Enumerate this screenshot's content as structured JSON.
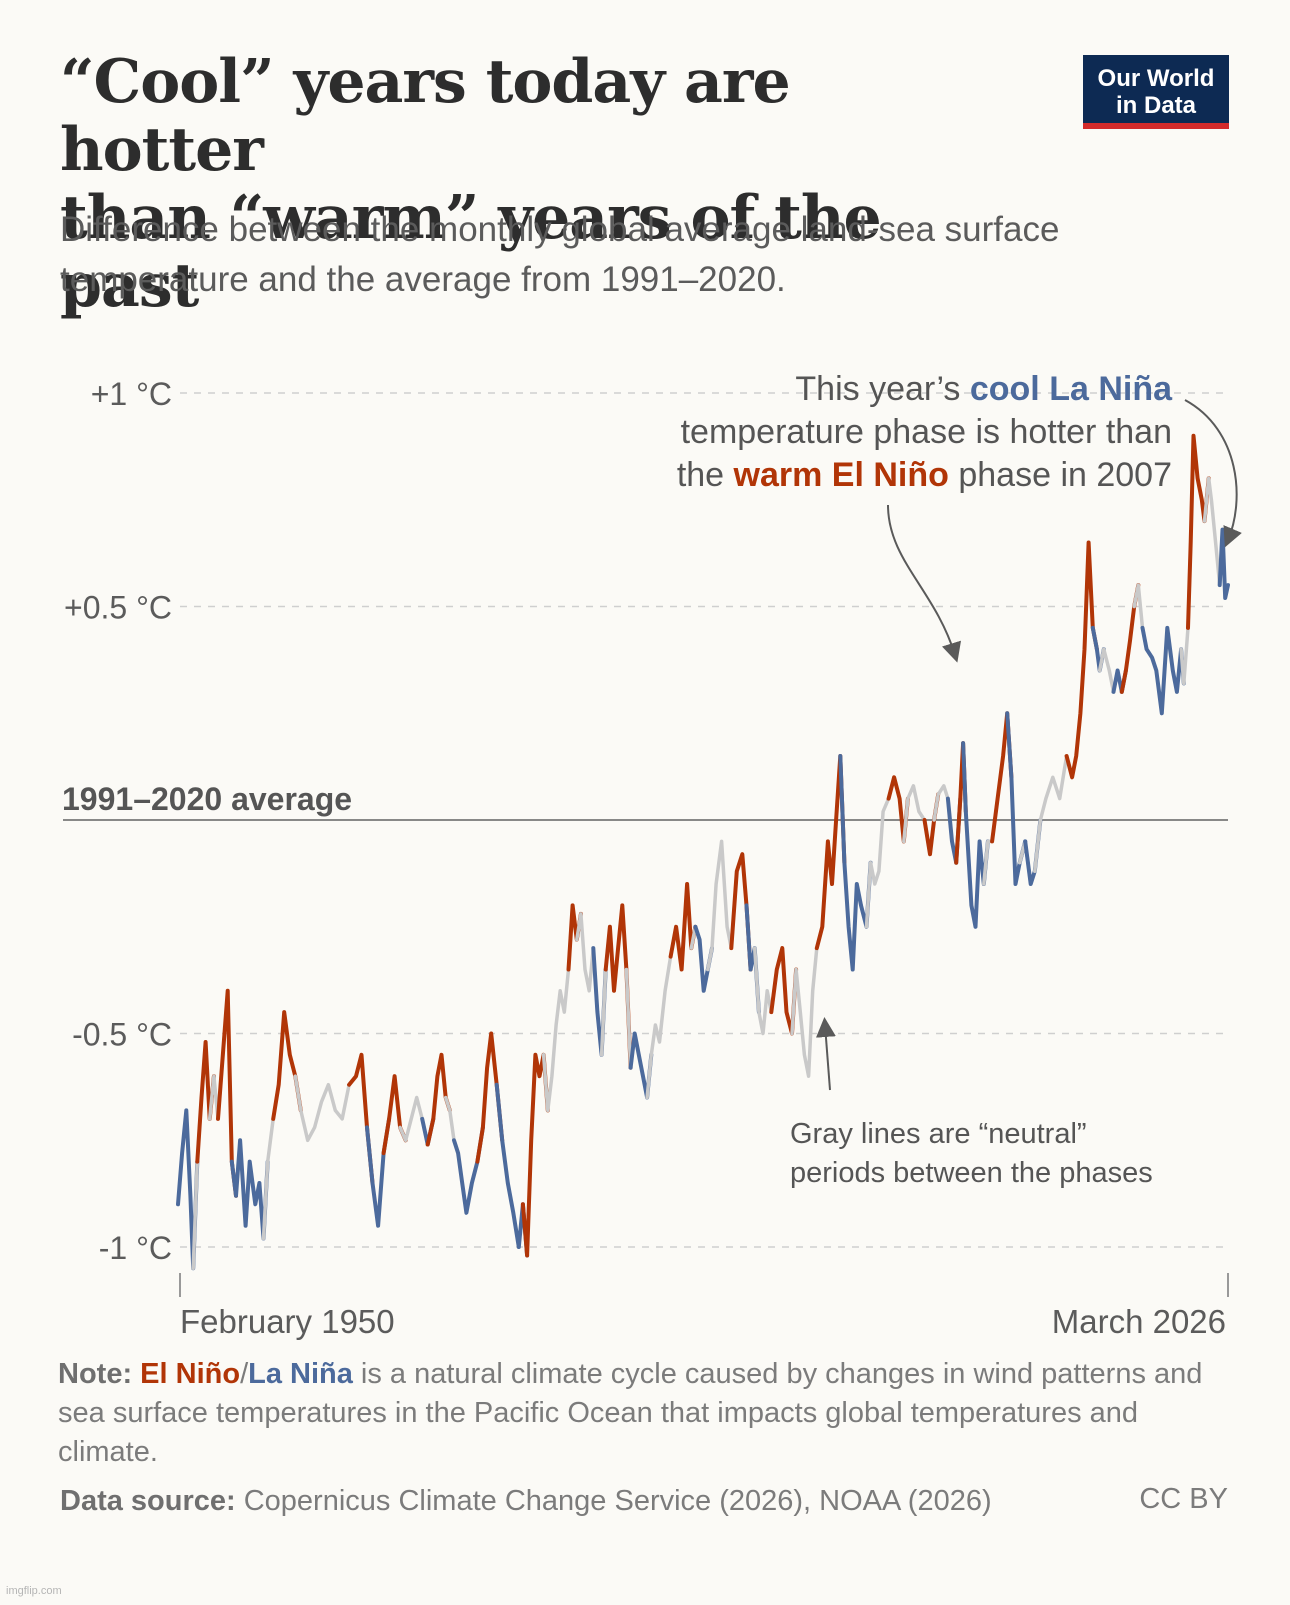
{
  "header": {
    "title_line1": "“Cool” years today are hotter",
    "title_line2": "than “warm” years of the past",
    "subtitle": "Difference between the monthly global average land-sea surface temperature and the average from 1991–2020.",
    "logo_line1": "Our World",
    "logo_line2": "in Data"
  },
  "chart_data": {
    "type": "line",
    "title": "“Cool” years today are hotter than “warm” years of the past",
    "ylabel": "",
    "xlabel": "",
    "ylim": [
      -1.08,
      1.05
    ],
    "x_range": [
      "February 1950",
      "March 2026"
    ],
    "y_ticks": [
      {
        "value": 1,
        "label": "+1 °C"
      },
      {
        "value": 0.5,
        "label": "+0.5 °C"
      },
      {
        "value": -0.5,
        "label": "-0.5 °C"
      },
      {
        "value": -1,
        "label": "-1 °C"
      }
    ],
    "baseline": {
      "value": 0,
      "label": "1991–2020 average"
    },
    "x_tick_labels": [
      "February 1950",
      "March 2026"
    ],
    "series": [
      {
        "name": "El Niño",
        "color": "#b13507"
      },
      {
        "name": "La Niña",
        "color": "#4c6a9c"
      },
      {
        "name": "neutral",
        "color": "#c9c9c9"
      }
    ],
    "points": [
      [
        1950.1,
        -0.9,
        "L"
      ],
      [
        1950.4,
        -0.78,
        "L"
      ],
      [
        1950.7,
        -0.68,
        "L"
      ],
      [
        1951.0,
        -0.88,
        "L"
      ],
      [
        1951.2,
        -1.05,
        "L"
      ],
      [
        1951.5,
        -0.8,
        "N"
      ],
      [
        1951.8,
        -0.65,
        "E"
      ],
      [
        1952.1,
        -0.52,
        "E"
      ],
      [
        1952.4,
        -0.7,
        "E"
      ],
      [
        1952.7,
        -0.6,
        "N"
      ],
      [
        1953.0,
        -0.7,
        "N"
      ],
      [
        1953.3,
        -0.57,
        "E"
      ],
      [
        1953.7,
        -0.4,
        "E"
      ],
      [
        1954.0,
        -0.8,
        "E"
      ],
      [
        1954.3,
        -0.88,
        "L"
      ],
      [
        1954.6,
        -0.75,
        "L"
      ],
      [
        1955.0,
        -0.95,
        "L"
      ],
      [
        1955.3,
        -0.8,
        "L"
      ],
      [
        1955.7,
        -0.9,
        "L"
      ],
      [
        1956.0,
        -0.85,
        "L"
      ],
      [
        1956.3,
        -0.98,
        "L"
      ],
      [
        1956.6,
        -0.8,
        "N"
      ],
      [
        1957.0,
        -0.7,
        "N"
      ],
      [
        1957.4,
        -0.62,
        "E"
      ],
      [
        1957.8,
        -0.45,
        "E"
      ],
      [
        1958.2,
        -0.55,
        "E"
      ],
      [
        1958.6,
        -0.6,
        "E"
      ],
      [
        1959.0,
        -0.68,
        "N"
      ],
      [
        1959.5,
        -0.75,
        "N"
      ],
      [
        1960.0,
        -0.72,
        "N"
      ],
      [
        1960.5,
        -0.66,
        "N"
      ],
      [
        1961.0,
        -0.62,
        "N"
      ],
      [
        1961.5,
        -0.68,
        "N"
      ],
      [
        1962.0,
        -0.7,
        "N"
      ],
      [
        1962.5,
        -0.62,
        "N"
      ],
      [
        1963.0,
        -0.6,
        "E"
      ],
      [
        1963.4,
        -0.55,
        "E"
      ],
      [
        1963.8,
        -0.72,
        "E"
      ],
      [
        1964.2,
        -0.85,
        "L"
      ],
      [
        1964.6,
        -0.95,
        "L"
      ],
      [
        1965.0,
        -0.78,
        "L"
      ],
      [
        1965.4,
        -0.7,
        "E"
      ],
      [
        1965.8,
        -0.6,
        "E"
      ],
      [
        1966.2,
        -0.72,
        "E"
      ],
      [
        1966.6,
        -0.75,
        "N"
      ],
      [
        1967.0,
        -0.7,
        "N"
      ],
      [
        1967.4,
        -0.65,
        "N"
      ],
      [
        1967.8,
        -0.7,
        "N"
      ],
      [
        1968.2,
        -0.76,
        "L"
      ],
      [
        1968.6,
        -0.7,
        "E"
      ],
      [
        1968.9,
        -0.6,
        "E"
      ],
      [
        1969.2,
        -0.55,
        "E"
      ],
      [
        1969.5,
        -0.65,
        "E"
      ],
      [
        1969.8,
        -0.68,
        "N"
      ],
      [
        1970.1,
        -0.75,
        "N"
      ],
      [
        1970.4,
        -0.78,
        "L"
      ],
      [
        1970.7,
        -0.85,
        "L"
      ],
      [
        1971.0,
        -0.92,
        "L"
      ],
      [
        1971.4,
        -0.85,
        "L"
      ],
      [
        1971.8,
        -0.8,
        "L"
      ],
      [
        1972.2,
        -0.72,
        "E"
      ],
      [
        1972.5,
        -0.58,
        "E"
      ],
      [
        1972.8,
        -0.5,
        "E"
      ],
      [
        1973.2,
        -0.62,
        "E"
      ],
      [
        1973.6,
        -0.75,
        "L"
      ],
      [
        1974.0,
        -0.85,
        "L"
      ],
      [
        1974.4,
        -0.92,
        "L"
      ],
      [
        1974.8,
        -1.0,
        "L"
      ],
      [
        1975.1,
        -0.9,
        "L"
      ],
      [
        1975.4,
        -1.02,
        "E"
      ],
      [
        1975.7,
        -0.75,
        "E"
      ],
      [
        1976.0,
        -0.55,
        "E"
      ],
      [
        1976.3,
        -0.6,
        "E"
      ],
      [
        1976.6,
        -0.55,
        "E"
      ],
      [
        1976.9,
        -0.68,
        "N"
      ],
      [
        1977.2,
        -0.6,
        "N"
      ],
      [
        1977.5,
        -0.48,
        "N"
      ],
      [
        1977.8,
        -0.4,
        "N"
      ],
      [
        1978.1,
        -0.45,
        "N"
      ],
      [
        1978.4,
        -0.35,
        "N"
      ],
      [
        1978.7,
        -0.2,
        "E"
      ],
      [
        1979.0,
        -0.28,
        "E"
      ],
      [
        1979.3,
        -0.22,
        "N"
      ],
      [
        1979.6,
        -0.35,
        "N"
      ],
      [
        1979.9,
        -0.4,
        "N"
      ],
      [
        1980.2,
        -0.3,
        "N"
      ],
      [
        1980.5,
        -0.45,
        "L"
      ],
      [
        1980.8,
        -0.55,
        "L"
      ],
      [
        1981.1,
        -0.35,
        "N"
      ],
      [
        1981.4,
        -0.25,
        "E"
      ],
      [
        1981.7,
        -0.4,
        "E"
      ],
      [
        1982.0,
        -0.3,
        "E"
      ],
      [
        1982.3,
        -0.2,
        "E"
      ],
      [
        1982.6,
        -0.35,
        "E"
      ],
      [
        1982.9,
        -0.58,
        "N"
      ],
      [
        1983.2,
        -0.5,
        "L"
      ],
      [
        1983.5,
        -0.55,
        "L"
      ],
      [
        1983.8,
        -0.6,
        "L"
      ],
      [
        1984.1,
        -0.65,
        "L"
      ],
      [
        1984.4,
        -0.55,
        "N"
      ],
      [
        1984.7,
        -0.48,
        "N"
      ],
      [
        1985.0,
        -0.52,
        "N"
      ],
      [
        1985.4,
        -0.4,
        "N"
      ],
      [
        1985.8,
        -0.32,
        "N"
      ],
      [
        1986.2,
        -0.25,
        "E"
      ],
      [
        1986.6,
        -0.35,
        "E"
      ],
      [
        1987.0,
        -0.15,
        "E"
      ],
      [
        1987.3,
        -0.3,
        "E"
      ],
      [
        1987.6,
        -0.25,
        "N"
      ],
      [
        1987.9,
        -0.28,
        "L"
      ],
      [
        1988.2,
        -0.4,
        "L"
      ],
      [
        1988.5,
        -0.35,
        "L"
      ],
      [
        1988.8,
        -0.3,
        "N"
      ],
      [
        1989.1,
        -0.15,
        "N"
      ],
      [
        1989.5,
        -0.05,
        "N"
      ],
      [
        1989.9,
        -0.25,
        "N"
      ],
      [
        1990.2,
        -0.3,
        "N"
      ],
      [
        1990.6,
        -0.12,
        "E"
      ],
      [
        1991.0,
        -0.08,
        "E"
      ],
      [
        1991.3,
        -0.2,
        "E"
      ],
      [
        1991.6,
        -0.35,
        "L"
      ],
      [
        1991.9,
        -0.3,
        "L"
      ],
      [
        1992.2,
        -0.45,
        "N"
      ],
      [
        1992.5,
        -0.5,
        "N"
      ],
      [
        1992.8,
        -0.4,
        "N"
      ],
      [
        1993.1,
        -0.45,
        "N"
      ],
      [
        1993.5,
        -0.35,
        "E"
      ],
      [
        1993.9,
        -0.3,
        "E"
      ],
      [
        1994.2,
        -0.45,
        "E"
      ],
      [
        1994.6,
        -0.5,
        "E"
      ],
      [
        1994.9,
        -0.35,
        "N"
      ],
      [
        1995.2,
        -0.45,
        "N"
      ],
      [
        1995.5,
        -0.55,
        "N"
      ],
      [
        1995.8,
        -0.6,
        "N"
      ],
      [
        1996.1,
        -0.4,
        "N"
      ],
      [
        1996.4,
        -0.3,
        "N"
      ],
      [
        1996.8,
        -0.25,
        "E"
      ],
      [
        1997.2,
        -0.05,
        "E"
      ],
      [
        1997.5,
        -0.15,
        "E"
      ],
      [
        1997.8,
        0.0,
        "E"
      ],
      [
        1998.1,
        0.15,
        "E"
      ],
      [
        1998.4,
        -0.1,
        "L"
      ],
      [
        1998.7,
        -0.25,
        "L"
      ],
      [
        1999.0,
        -0.35,
        "L"
      ],
      [
        1999.3,
        -0.15,
        "L"
      ],
      [
        1999.6,
        -0.2,
        "L"
      ],
      [
        2000.0,
        -0.25,
        "L"
      ],
      [
        2000.3,
        -0.1,
        "N"
      ],
      [
        2000.6,
        -0.15,
        "N"
      ],
      [
        2000.9,
        -0.12,
        "N"
      ],
      [
        2001.2,
        0.02,
        "N"
      ],
      [
        2001.6,
        0.05,
        "N"
      ],
      [
        2002.0,
        0.1,
        "E"
      ],
      [
        2002.4,
        0.05,
        "E"
      ],
      [
        2002.7,
        -0.05,
        "E"
      ],
      [
        2003.0,
        0.05,
        "N"
      ],
      [
        2003.4,
        0.08,
        "N"
      ],
      [
        2003.8,
        0.02,
        "N"
      ],
      [
        2004.2,
        0.0,
        "N"
      ],
      [
        2004.6,
        -0.08,
        "E"
      ],
      [
        2004.9,
        0.0,
        "E"
      ],
      [
        2005.2,
        0.06,
        "N"
      ],
      [
        2005.6,
        0.08,
        "N"
      ],
      [
        2005.9,
        0.05,
        "N"
      ],
      [
        2006.2,
        -0.05,
        "L"
      ],
      [
        2006.5,
        -0.1,
        "L"
      ],
      [
        2006.8,
        0.05,
        "E"
      ],
      [
        2007.0,
        0.18,
        "E"
      ],
      [
        2007.2,
        0.02,
        "L"
      ],
      [
        2007.6,
        -0.2,
        "L"
      ],
      [
        2007.9,
        -0.25,
        "L"
      ],
      [
        2008.2,
        -0.05,
        "L"
      ],
      [
        2008.5,
        -0.15,
        "L"
      ],
      [
        2008.8,
        -0.05,
        "N"
      ],
      [
        2009.1,
        -0.05,
        "N"
      ],
      [
        2009.5,
        0.05,
        "E"
      ],
      [
        2009.9,
        0.15,
        "E"
      ],
      [
        2010.2,
        0.25,
        "E"
      ],
      [
        2010.5,
        0.1,
        "L"
      ],
      [
        2010.8,
        -0.15,
        "L"
      ],
      [
        2011.1,
        -0.1,
        "L"
      ],
      [
        2011.5,
        -0.05,
        "N"
      ],
      [
        2011.9,
        -0.15,
        "L"
      ],
      [
        2012.2,
        -0.12,
        "L"
      ],
      [
        2012.6,
        0.0,
        "N"
      ],
      [
        2013.0,
        0.05,
        "N"
      ],
      [
        2013.5,
        0.1,
        "N"
      ],
      [
        2014.0,
        0.05,
        "N"
      ],
      [
        2014.5,
        0.15,
        "N"
      ],
      [
        2014.9,
        0.1,
        "E"
      ],
      [
        2015.2,
        0.15,
        "E"
      ],
      [
        2015.5,
        0.25,
        "E"
      ],
      [
        2015.8,
        0.4,
        "E"
      ],
      [
        2016.1,
        0.65,
        "E"
      ],
      [
        2016.4,
        0.45,
        "E"
      ],
      [
        2016.7,
        0.4,
        "L"
      ],
      [
        2016.9,
        0.35,
        "L"
      ],
      [
        2017.2,
        0.4,
        "N"
      ],
      [
        2017.6,
        0.35,
        "N"
      ],
      [
        2017.9,
        0.3,
        "N"
      ],
      [
        2018.2,
        0.35,
        "L"
      ],
      [
        2018.5,
        0.3,
        "L"
      ],
      [
        2018.8,
        0.35,
        "E"
      ],
      [
        2019.1,
        0.42,
        "E"
      ],
      [
        2019.4,
        0.5,
        "E"
      ],
      [
        2019.7,
        0.55,
        "N"
      ],
      [
        2020.0,
        0.45,
        "N"
      ],
      [
        2020.3,
        0.4,
        "L"
      ],
      [
        2020.7,
        0.38,
        "L"
      ],
      [
        2021.0,
        0.35,
        "L"
      ],
      [
        2021.4,
        0.25,
        "L"
      ],
      [
        2021.8,
        0.45,
        "L"
      ],
      [
        2022.2,
        0.35,
        "L"
      ],
      [
        2022.5,
        0.3,
        "L"
      ],
      [
        2022.8,
        0.4,
        "L"
      ],
      [
        2023.0,
        0.32,
        "N"
      ],
      [
        2023.3,
        0.45,
        "N"
      ],
      [
        2023.5,
        0.65,
        "E"
      ],
      [
        2023.7,
        0.9,
        "E"
      ],
      [
        2024.0,
        0.8,
        "E"
      ],
      [
        2024.3,
        0.75,
        "E"
      ],
      [
        2024.5,
        0.7,
        "E"
      ],
      [
        2024.8,
        0.8,
        "N"
      ],
      [
        2025.0,
        0.75,
        "N"
      ],
      [
        2025.3,
        0.65,
        "N"
      ],
      [
        2025.6,
        0.55,
        "N"
      ],
      [
        2025.8,
        0.68,
        "L"
      ],
      [
        2026.0,
        0.52,
        "L"
      ],
      [
        2026.2,
        0.55,
        "L"
      ]
    ]
  },
  "annotations": {
    "top_line1_prefix": "This year’s ",
    "top_line1_highlight": "cool La Niña",
    "top_line2": "temperature phase is hotter than",
    "top_line3_prefix": "the ",
    "top_line3_highlight": "warm El Niño",
    "top_line3_suffix": " phase in 2007",
    "gray_line1": "Gray lines are “neutral”",
    "gray_line2": "periods between the phases"
  },
  "footer": {
    "note_label": "Note:",
    "note_el_nino": "El Niño",
    "note_slash": "/",
    "note_la_nina": "La Niña",
    "note_text": " is a natural climate cycle caused by changes in wind patterns and sea surface temperatures in the Pacific Ocean that impacts global temperatures and climate.",
    "source_label": "Data source:",
    "source_text": " Copernicus Climate Change Service (2026), NOAA (2026)",
    "license": "CC BY",
    "watermark": "imgflip.com"
  },
  "colors": {
    "el_nino": "#b13507",
    "la_nina": "#4c6a9c",
    "neutral": "#c9c9c9",
    "logo_bg": "#0d2a53",
    "logo_bar": "#d42b2b"
  }
}
